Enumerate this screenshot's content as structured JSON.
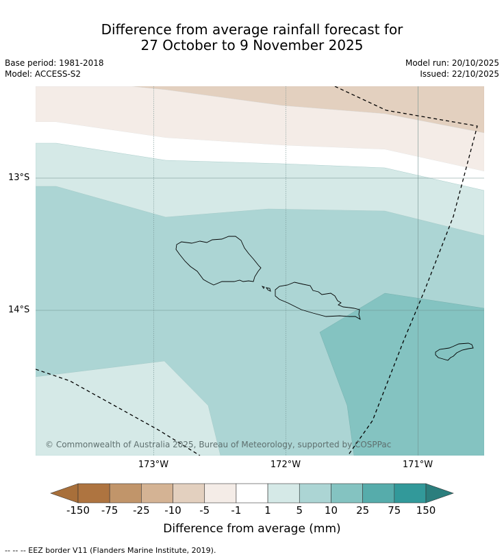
{
  "title": {
    "line1": "Difference from average rainfall forecast for",
    "line2": "27 October to 9 November 2025"
  },
  "meta": {
    "base_period": "Base period: 1981-2018",
    "model": "Model: ACCESS-S2",
    "model_run": "Model run: 20/10/2025",
    "issued": "Issued: 22/10/2025"
  },
  "map": {
    "lat_labels": [
      "13°S",
      "14°S"
    ],
    "lon_labels": [
      "173°W",
      "172°W",
      "171°W"
    ],
    "copyright": "© Commonwealth of Australia 2025, Bureau of Meteorology, supported by COSPPac",
    "colors": {
      "dry_5_10": "#e3d0bf",
      "dry_1_5": "#f4ece7",
      "neutral": "#ffffff",
      "wet_1_5": "#d5e9e7",
      "wet_5_10": "#acd5d4",
      "wet_10_25": "#84c3c1"
    }
  },
  "colorbar": {
    "ticks": [
      "-150",
      "-75",
      "-25",
      "-10",
      "-5",
      "-1",
      "1",
      "5",
      "10",
      "25",
      "75",
      "150"
    ],
    "colors": [
      "#a86f3a",
      "#ae7440",
      "#c1956a",
      "#d4b394",
      "#e3d0bf",
      "#f4ece7",
      "#ffffff",
      "#d5e9e7",
      "#acd5d4",
      "#84c3c1",
      "#56acab",
      "#32999a",
      "#2b7e7d"
    ],
    "label": "Difference from average (mm)"
  },
  "footnote": "--  --  -- EEZ border V11 (Flanders Marine Institute, 2019)."
}
